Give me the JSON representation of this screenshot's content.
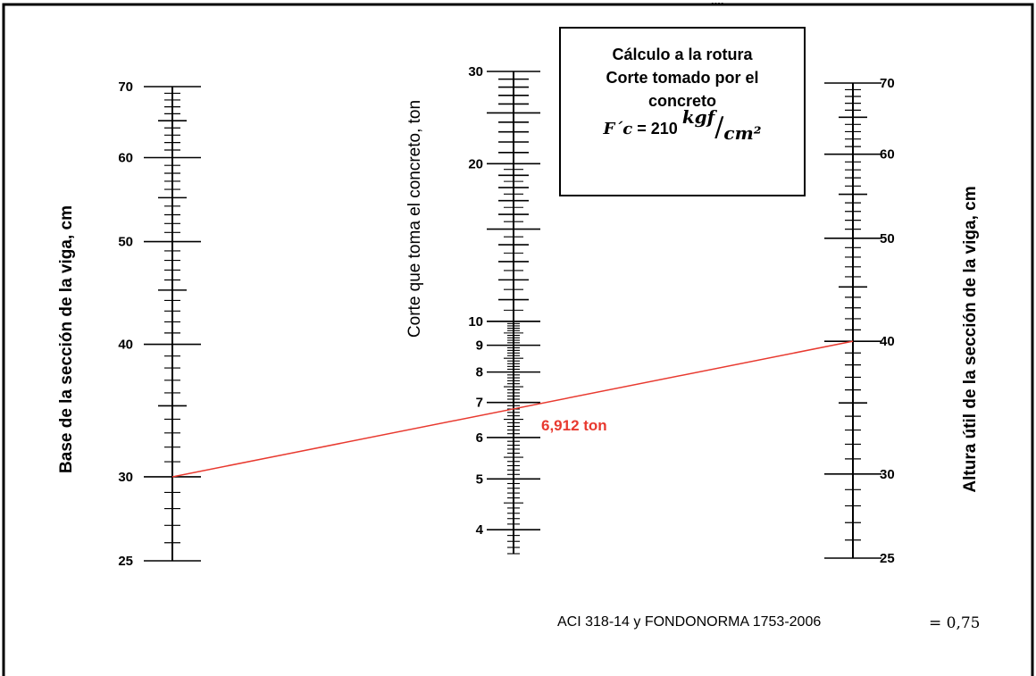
{
  "header_note": "....",
  "left_scale": {
    "title": "Base de la sección de la viga, cm",
    "min": 25,
    "max": 70,
    "labels": [
      "70",
      "60",
      "50",
      "40",
      "30",
      "25"
    ],
    "label_values": [
      70,
      60,
      50,
      40,
      30,
      25
    ]
  },
  "middle_scale": {
    "title": "Corte que toma el concreto, ton",
    "min": 3.6,
    "max": 30,
    "labels": [
      "30",
      "20",
      "10",
      "9",
      "8",
      "7",
      "6",
      "5",
      "4"
    ],
    "label_values": [
      30,
      20,
      10,
      9,
      8,
      7,
      6,
      5,
      4
    ]
  },
  "right_scale": {
    "title": "Altura útil de la sección de la viga, cm",
    "min": 25,
    "max": 70,
    "labels": [
      "70",
      "60",
      "50",
      "40",
      "30",
      "25"
    ],
    "label_values": [
      70,
      60,
      50,
      40,
      30,
      25
    ]
  },
  "info_box": {
    "line1": "Cálculo a la rotura",
    "line2": "Corte tomado por el",
    "line3": "concreto",
    "formula_symbol": "F´c",
    "formula_eq": "= 210",
    "formula_unit_top": "kgf",
    "formula_slash": "/",
    "formula_unit_bottom": "cm²"
  },
  "result": {
    "label": "6,912 ton",
    "value": 6.912,
    "left_input": 30,
    "right_input": 40,
    "line_color": "#e8392f"
  },
  "footer": {
    "reference": "ACI 318-14 y FONDONORMA 1753-2006",
    "phi": "= 0,75"
  }
}
